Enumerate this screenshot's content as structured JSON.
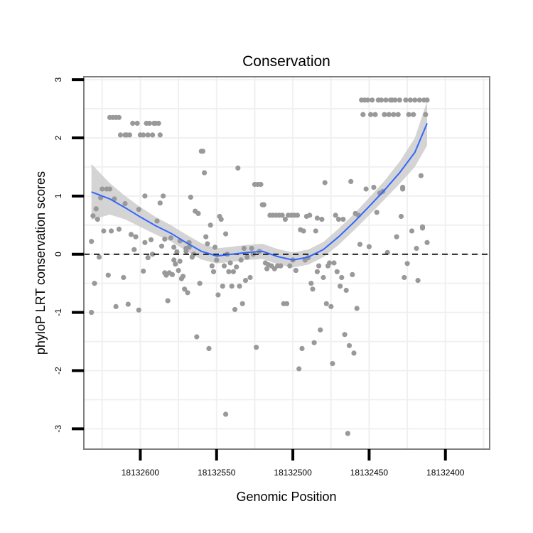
{
  "chart_data": {
    "type": "scatter",
    "title": "Conservation",
    "xlabel": "Genomic Position",
    "ylabel": "phyloP LRT conservation scores",
    "xlim": [
      18132637,
      18132371
    ],
    "ylim": [
      -3.35,
      3.05
    ],
    "x_reversed": true,
    "xticks": [
      18132600,
      18132550,
      18132500,
      18132450,
      18132400
    ],
    "xtick_labels": [
      "18132600",
      "18132550",
      "18132500",
      "18132450",
      "18132400"
    ],
    "yticks": [
      -3,
      -2,
      -1,
      0,
      1,
      2,
      3
    ],
    "ytick_labels": [
      "-3",
      "-2",
      "-1",
      "0",
      "1",
      "2",
      "3"
    ],
    "reference_line": {
      "y": 0,
      "style": "dashed"
    },
    "colors": {
      "points": "#999999",
      "smooth": "#3366ff",
      "band": "#cccccc",
      "frame": "#7f7f7f",
      "grid": "#f0f0f0"
    },
    "series": [
      {
        "name": "scores",
        "points": [
          [
            18132632,
            -1.0
          ],
          [
            18132632,
            0.22
          ],
          [
            18132631,
            0.66
          ],
          [
            18132630,
            -0.5
          ],
          [
            18132629,
            0.78
          ],
          [
            18132628,
            0.6
          ],
          [
            18132627,
            -0.05
          ],
          [
            18132626,
            0.97
          ],
          [
            18132625,
            1.12
          ],
          [
            18132624,
            0.4
          ],
          [
            18132622,
            1.12
          ],
          [
            18132621,
            -0.36
          ],
          [
            18132620,
            1.12
          ],
          [
            18132620,
            2.35
          ],
          [
            18132619,
            0.4
          ],
          [
            18132618,
            2.35
          ],
          [
            18132617,
            0.95
          ],
          [
            18132616,
            -0.9
          ],
          [
            18132616,
            2.35
          ],
          [
            18132614,
            2.35
          ],
          [
            18132614,
            0.43
          ],
          [
            18132613,
            2.05
          ],
          [
            18132611,
            -0.4
          ],
          [
            18132610,
            2.05
          ],
          [
            18132610,
            0.87
          ],
          [
            18132609,
            2.05
          ],
          [
            18132608,
            -0.86
          ],
          [
            18132607,
            2.05
          ],
          [
            18132606,
            0.34
          ],
          [
            18132605,
            2.25
          ],
          [
            18132604,
            0.08
          ],
          [
            18132603,
            0.3
          ],
          [
            18132602,
            2.25
          ],
          [
            18132601,
            -0.96
          ],
          [
            18132601,
            0.77
          ],
          [
            18132600,
            2.05
          ],
          [
            18132598,
            -0.29
          ],
          [
            18132598,
            2.05
          ],
          [
            18132597,
            0.2
          ],
          [
            18132597,
            1.0
          ],
          [
            18132596,
            2.25
          ],
          [
            18132595,
            -0.06
          ],
          [
            18132595,
            2.05
          ],
          [
            18132594,
            2.25
          ],
          [
            18132593,
            0.25
          ],
          [
            18132592,
            2.05
          ],
          [
            18132592,
            0.0
          ],
          [
            18132591,
            2.25
          ],
          [
            18132590,
            2.25
          ],
          [
            18132589,
            0.57
          ],
          [
            18132588,
            2.25
          ],
          [
            18132587,
            0.88
          ],
          [
            18132587,
            2.05
          ],
          [
            18132586,
            0.14
          ],
          [
            18132585,
            1.0
          ],
          [
            18132584,
            0.26
          ],
          [
            18132584,
            -0.32
          ],
          [
            18132583,
            -0.36
          ],
          [
            18132582,
            -0.8
          ],
          [
            18132581,
            -0.32
          ],
          [
            18132580,
            0.28
          ],
          [
            18132579,
            -0.35
          ],
          [
            18132578,
            0.12
          ],
          [
            18132578,
            -0.1
          ],
          [
            18132577,
            -0.17
          ],
          [
            18132576,
            0.04
          ],
          [
            18132575,
            -0.28
          ],
          [
            18132574,
            -0.12
          ],
          [
            18132574,
            0.23
          ],
          [
            18132573,
            -0.42
          ],
          [
            18132572,
            -0.38
          ],
          [
            18132571,
            -0.6
          ],
          [
            18132570,
            0.05
          ],
          [
            18132570,
            0.1
          ],
          [
            18132569,
            -0.66
          ],
          [
            18132568,
            0.12
          ],
          [
            18132568,
            0.2
          ],
          [
            18132567,
            0.98
          ],
          [
            18132566,
            -0.05
          ],
          [
            18132565,
            0.0
          ],
          [
            18132564,
            0.74
          ],
          [
            18132563,
            -1.42
          ],
          [
            18132562,
            0.7
          ],
          [
            18132561,
            -0.5
          ],
          [
            18132560,
            1.77
          ],
          [
            18132559,
            1.77
          ],
          [
            18132558,
            1.4
          ],
          [
            18132557,
            0.3
          ],
          [
            18132556,
            0.18
          ],
          [
            18132555,
            -1.62
          ],
          [
            18132554,
            0.5
          ],
          [
            18132553,
            -0.2
          ],
          [
            18132552,
            -0.3
          ],
          [
            18132551,
            0.12
          ],
          [
            18132550,
            -0.1
          ],
          [
            18132549,
            -0.7
          ],
          [
            18132548,
            0.65
          ],
          [
            18132547,
            0.6
          ],
          [
            18132546,
            -0.55
          ],
          [
            18132545,
            -0.2
          ],
          [
            18132544,
            0.35
          ],
          [
            18132544,
            -2.75
          ],
          [
            18132543,
            0.0
          ],
          [
            18132542,
            -0.3
          ],
          [
            18132541,
            -0.15
          ],
          [
            18132540,
            -0.55
          ],
          [
            18132539,
            -0.3
          ],
          [
            18132538,
            -0.95
          ],
          [
            18132537,
            -0.22
          ],
          [
            18132536,
            1.48
          ],
          [
            18132535,
            -0.55
          ],
          [
            18132534,
            -0.1
          ],
          [
            18132533,
            -0.85
          ],
          [
            18132532,
            0.1
          ],
          [
            18132531,
            -0.45
          ],
          [
            18132530,
            -0.05
          ],
          [
            18132528,
            -0.4
          ],
          [
            18132527,
            0.1
          ],
          [
            18132526,
            0.0
          ],
          [
            18132525,
            1.2
          ],
          [
            18132524,
            -1.6
          ],
          [
            18132523,
            1.2
          ],
          [
            18132522,
            0.05
          ],
          [
            18132521,
            1.2
          ],
          [
            18132520,
            0.85
          ],
          [
            18132519,
            0.85
          ],
          [
            18132518,
            -0.15
          ],
          [
            18132517,
            -0.25
          ],
          [
            18132516,
            -0.18
          ],
          [
            18132515,
            0.67
          ],
          [
            18132514,
            -0.2
          ],
          [
            18132513,
            0.67
          ],
          [
            18132512,
            -0.25
          ],
          [
            18132511,
            0.67
          ],
          [
            18132510,
            -0.2
          ],
          [
            18132509,
            0.67
          ],
          [
            18132508,
            -0.2
          ],
          [
            18132507,
            0.67
          ],
          [
            18132506,
            -0.85
          ],
          [
            18132505,
            0.6
          ],
          [
            18132504,
            -0.85
          ],
          [
            18132503,
            0.67
          ],
          [
            18132502,
            -0.2
          ],
          [
            18132501,
            0.67
          ],
          [
            18132500,
            -0.1
          ],
          [
            18132499,
            0.67
          ],
          [
            18132498,
            -0.28
          ],
          [
            18132497,
            0.67
          ],
          [
            18132496,
            -1.97
          ],
          [
            18132495,
            0.42
          ],
          [
            18132494,
            -1.62
          ],
          [
            18132493,
            0.4
          ],
          [
            18132492,
            -0.1
          ],
          [
            18132491,
            0.65
          ],
          [
            18132490,
            -0.06
          ],
          [
            18132489,
            0.67
          ],
          [
            18132488,
            -0.5
          ],
          [
            18132487,
            -0.6
          ],
          [
            18132486,
            -1.52
          ],
          [
            18132485,
            0.4
          ],
          [
            18132484,
            -0.3
          ],
          [
            18132484,
            0.62
          ],
          [
            18132483,
            -0.2
          ],
          [
            18132482,
            -1.3
          ],
          [
            18132481,
            0.6
          ],
          [
            18132480,
            -0.4
          ],
          [
            18132479,
            1.23
          ],
          [
            18132478,
            -0.85
          ],
          [
            18132477,
            -0.2
          ],
          [
            18132476,
            -0.15
          ],
          [
            18132475,
            -0.9
          ],
          [
            18132474,
            -1.88
          ],
          [
            18132473,
            -0.15
          ],
          [
            18132472,
            0.67
          ],
          [
            18132471,
            -0.3
          ],
          [
            18132470,
            0.6
          ],
          [
            18132469,
            -0.55
          ],
          [
            18132468,
            -0.4
          ],
          [
            18132467,
            0.6
          ],
          [
            18132466,
            -1.38
          ],
          [
            18132465,
            -0.62
          ],
          [
            18132464,
            -3.08
          ],
          [
            18132463,
            -1.57
          ],
          [
            18132462,
            1.25
          ],
          [
            18132461,
            -0.35
          ],
          [
            18132460,
            -1.7
          ],
          [
            18132459,
            0.7
          ],
          [
            18132458,
            -0.93
          ],
          [
            18132457,
            0.67
          ],
          [
            18132456,
            0.17
          ],
          [
            18132455,
            2.65
          ],
          [
            18132454,
            2.4
          ],
          [
            18132453,
            2.65
          ],
          [
            18132452,
            1.12
          ],
          [
            18132451,
            2.65
          ],
          [
            18132450,
            0.13
          ],
          [
            18132449,
            2.4
          ],
          [
            18132448,
            2.65
          ],
          [
            18132447,
            1.15
          ],
          [
            18132446,
            2.4
          ],
          [
            18132445,
            0.72
          ],
          [
            18132444,
            2.65
          ],
          [
            18132443,
            1.05
          ],
          [
            18132442,
            2.65
          ],
          [
            18132441,
            1.08
          ],
          [
            18132440,
            2.4
          ],
          [
            18132439,
            2.65
          ],
          [
            18132438,
            0.03
          ],
          [
            18132437,
            2.4
          ],
          [
            18132436,
            2.65
          ],
          [
            18132435,
            2.65
          ],
          [
            18132434,
            2.4
          ],
          [
            18132433,
            2.65
          ],
          [
            18132432,
            0.3
          ],
          [
            18132431,
            2.4
          ],
          [
            18132430,
            2.65
          ],
          [
            18132429,
            0.65
          ],
          [
            18132428,
            1.12
          ],
          [
            18132428,
            1.15
          ],
          [
            18132427,
            -0.4
          ],
          [
            18132426,
            2.65
          ],
          [
            18132425,
            -0.16
          ],
          [
            18132424,
            2.4
          ],
          [
            18132423,
            2.65
          ],
          [
            18132422,
            0.4
          ],
          [
            18132421,
            2.4
          ],
          [
            18132420,
            2.65
          ],
          [
            18132419,
            0.1
          ],
          [
            18132418,
            -0.45
          ],
          [
            18132417,
            2.65
          ],
          [
            18132416,
            1.35
          ],
          [
            18132415,
            0.45
          ],
          [
            18132415,
            0.47
          ],
          [
            18132414,
            2.65
          ],
          [
            18132413,
            2.4
          ],
          [
            18132412,
            2.65
          ],
          [
            18132412,
            0.2
          ]
        ]
      }
    ],
    "smooth": [
      [
        18132632,
        1.07
      ],
      [
        18132620,
        0.95
      ],
      [
        18132610,
        0.8
      ],
      [
        18132600,
        0.64
      ],
      [
        18132590,
        0.49
      ],
      [
        18132580,
        0.36
      ],
      [
        18132570,
        0.2
      ],
      [
        18132560,
        0.05
      ],
      [
        18132550,
        -0.03
      ],
      [
        18132540,
        0.0
      ],
      [
        18132530,
        0.03
      ],
      [
        18132520,
        0.05
      ],
      [
        18132510,
        -0.04
      ],
      [
        18132500,
        -0.1
      ],
      [
        18132490,
        -0.05
      ],
      [
        18132480,
        0.08
      ],
      [
        18132470,
        0.3
      ],
      [
        18132460,
        0.55
      ],
      [
        18132450,
        0.82
      ],
      [
        18132440,
        1.1
      ],
      [
        18132430,
        1.4
      ],
      [
        18132420,
        1.75
      ],
      [
        18132412,
        2.25
      ]
    ],
    "band_halfwidth": [
      [
        18132632,
        0.48
      ],
      [
        18132620,
        0.27
      ],
      [
        18132610,
        0.2
      ],
      [
        18132600,
        0.17
      ],
      [
        18132590,
        0.15
      ],
      [
        18132580,
        0.14
      ],
      [
        18132570,
        0.14
      ],
      [
        18132560,
        0.14
      ],
      [
        18132550,
        0.13
      ],
      [
        18132540,
        0.13
      ],
      [
        18132530,
        0.13
      ],
      [
        18132520,
        0.13
      ],
      [
        18132510,
        0.13
      ],
      [
        18132500,
        0.13
      ],
      [
        18132490,
        0.13
      ],
      [
        18132480,
        0.13
      ],
      [
        18132470,
        0.14
      ],
      [
        18132460,
        0.14
      ],
      [
        18132450,
        0.15
      ],
      [
        18132440,
        0.16
      ],
      [
        18132430,
        0.19
      ],
      [
        18132420,
        0.25
      ],
      [
        18132412,
        0.38
      ]
    ]
  }
}
